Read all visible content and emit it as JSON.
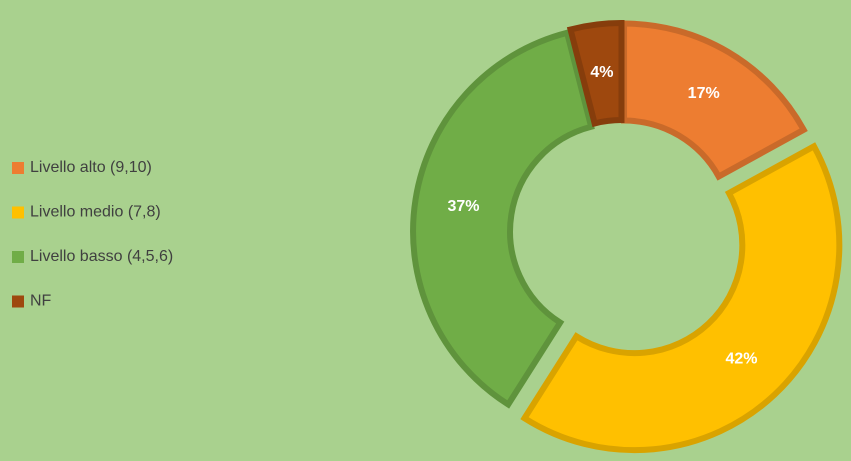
{
  "chart_data": {
    "type": "donut",
    "categories": [
      "Livello alto (9,10)",
      "Livello medio (7,8)",
      "Livello basso (4,5,6)",
      "NF"
    ],
    "values": [
      17,
      42,
      37,
      4
    ],
    "value_labels": [
      "17%",
      "42%",
      "37%",
      "4%"
    ],
    "colors": [
      "#ED7D31",
      "#FFC000",
      "#70AD47",
      "#9E480E"
    ],
    "legend": "left"
  }
}
